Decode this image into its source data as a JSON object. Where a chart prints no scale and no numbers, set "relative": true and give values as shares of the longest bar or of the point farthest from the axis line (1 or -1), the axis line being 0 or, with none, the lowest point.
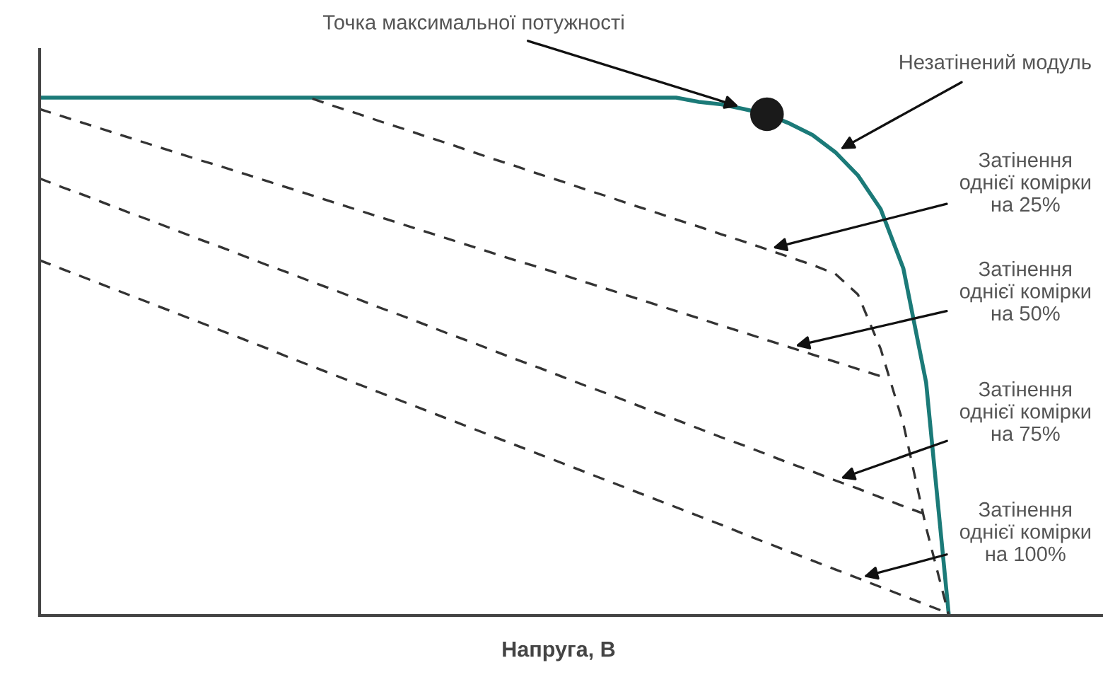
{
  "chart_data": {
    "type": "line",
    "relative": true,
    "xlabel": "Напруга, В",
    "categories": [
      null,
      null,
      null,
      null,
      null,
      null,
      null,
      null,
      null,
      null,
      null,
      null,
      null,
      null,
      null,
      null,
      null,
      null,
      null,
      null,
      null,
      null,
      null,
      null,
      null,
      null,
      null,
      null,
      null,
      null,
      null,
      null,
      null,
      null,
      null,
      null,
      null,
      null,
      null,
      null,
      null,
      null,
      null,
      null,
      null,
      null,
      null
    ],
    "series": [
      {
        "color": "#1b7a78",
        "line_style": "solid",
        "values": [
          1,
          1,
          1,
          1,
          1,
          1,
          1,
          1,
          1,
          1,
          1,
          1,
          1,
          1,
          1,
          1,
          1,
          1,
          1,
          1,
          1,
          1,
          1,
          1,
          1,
          1,
          1,
          1,
          1,
          0.992,
          0.987,
          0.978,
          0.968,
          0.95,
          0.928,
          0.895,
          0.85,
          0.785,
          0.67,
          0.45,
          0,
          null,
          null,
          null,
          null,
          null,
          null
        ]
      },
      {
        "color": "#333333",
        "line_style": "dashed",
        "values": [
          null,
          null,
          null,
          null,
          null,
          null,
          null,
          null,
          null,
          null,
          null,
          null,
          0.998,
          0.983,
          0.969,
          0.954,
          0.94,
          0.925,
          0.911,
          0.896,
          0.881,
          0.867,
          0.852,
          0.838,
          0.823,
          0.809,
          0.794,
          0.78,
          0.765,
          0.751,
          0.736,
          0.722,
          0.707,
          0.692,
          0.677,
          0.66,
          0.62,
          0.515,
          0.37,
          0.17,
          0,
          null,
          null,
          null,
          null,
          null,
          null
        ]
      },
      {
        "color": "#333333",
        "line_style": "dashed",
        "values": [
          0.978,
          0.964,
          0.95,
          0.936,
          0.922,
          0.908,
          0.894,
          0.88,
          0.867,
          0.853,
          0.839,
          0.825,
          0.811,
          0.797,
          0.783,
          0.769,
          0.755,
          0.741,
          0.727,
          0.713,
          0.699,
          0.685,
          0.672,
          0.658,
          0.644,
          0.63,
          0.616,
          0.602,
          0.588,
          0.574,
          0.56,
          0.546,
          0.532,
          0.518,
          0.504,
          0.49,
          0.476,
          0.462,
          null,
          null,
          null,
          null,
          null,
          null,
          null,
          null,
          null
        ]
      },
      {
        "color": "#333333",
        "line_style": "dashed",
        "values": [
          0.844,
          0.827,
          0.811,
          0.794,
          0.777,
          0.761,
          0.744,
          0.727,
          0.711,
          0.694,
          0.677,
          0.661,
          0.644,
          0.628,
          0.611,
          0.594,
          0.578,
          0.561,
          0.544,
          0.528,
          0.511,
          0.494,
          0.478,
          0.461,
          0.444,
          0.428,
          0.411,
          0.394,
          0.378,
          0.361,
          0.344,
          0.328,
          0.311,
          0.294,
          0.278,
          0.261,
          0.245,
          0.228,
          0.211,
          0.195,
          null,
          null,
          null,
          null,
          null,
          null,
          null
        ]
      },
      {
        "color": "#333333",
        "line_style": "dashed",
        "values": [
          0.686,
          0.669,
          0.652,
          0.635,
          0.618,
          0.601,
          0.584,
          0.567,
          0.55,
          0.533,
          0.516,
          0.498,
          0.481,
          0.464,
          0.447,
          0.43,
          0.413,
          0.396,
          0.379,
          0.362,
          0.345,
          0.328,
          0.311,
          0.294,
          0.277,
          0.26,
          0.243,
          0.226,
          0.209,
          0.192,
          0.175,
          0.157,
          0.14,
          0.123,
          0.106,
          0.089,
          0.072,
          0.055,
          0.038,
          0.021,
          0.004,
          null,
          null,
          null,
          null,
          null,
          null
        ]
      }
    ],
    "annotations": [
      "Точка максимальної потужності",
      "Незатінений модуль",
      "Затінення\nоднієї комірки\nна 25%",
      "Затінення\nоднієї комірки\nна 50%",
      "Затінення\nоднієї комірки\nна 75%",
      "Затінення\nоднієї комірки\nна 100%"
    ]
  }
}
